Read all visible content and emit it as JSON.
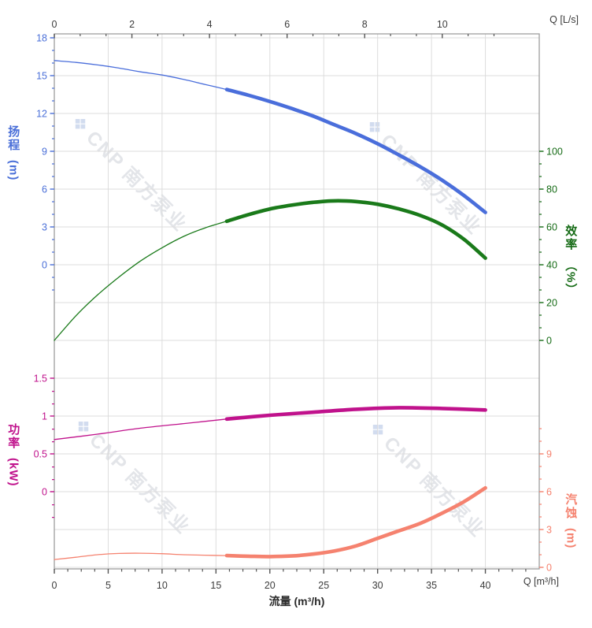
{
  "frame": {
    "background": "#ffffff",
    "grid_color": "#dcdcdc",
    "frame_color": "#9f9f9f",
    "tick_color_xy": "#555555"
  },
  "watermark": {
    "logo": "❖",
    "text": "CNP 南方泵业"
  },
  "chart_data": {
    "type": "line",
    "title": "",
    "x_bottom": {
      "title": "流量 (m³/h)",
      "corner_label": "Q [m³/h]",
      "range": [
        0,
        45
      ],
      "major_ticks": [
        0,
        5,
        10,
        15,
        20,
        25,
        30,
        35,
        40
      ],
      "minor_step": 1.25,
      "label_color": "#3c3c3c"
    },
    "x_top": {
      "corner_label": "Q [L/s]",
      "range": [
        0,
        12.5
      ],
      "major_ticks": [
        0,
        2,
        4,
        6,
        8,
        10
      ],
      "minor_step": 0.66667,
      "minor_max": 12.45,
      "label_color": "#3c3c3c"
    },
    "y_head": {
      "title": "扬程",
      "unit": "(m)",
      "range": [
        0,
        18
      ],
      "major_ticks": [
        18,
        15,
        12,
        9,
        6,
        3,
        0
      ],
      "major_labels": [
        "18",
        "15",
        "12",
        "9",
        "6",
        "3",
        "0"
      ],
      "minor_step": 1,
      "minor_min": -2,
      "minor_max": 18,
      "color": "#4a6fd8"
    },
    "y_eff": {
      "title": "效率",
      "unit": "（%）",
      "range": [
        0,
        100
      ],
      "major_ticks": [
        100,
        80,
        60,
        40,
        20,
        0
      ],
      "major_labels": [
        "100",
        "80",
        "60",
        "40",
        "20",
        "0"
      ],
      "minor_step": 6.66667,
      "minor_min": 0,
      "minor_max": 100,
      "color": "#166b16"
    },
    "y_power": {
      "title": "功率",
      "unit": "(kW)",
      "range": [
        0,
        1.5
      ],
      "major_ticks": [
        1.5,
        1,
        0.5,
        0
      ],
      "major_labels": [
        "1.5",
        "1",
        "0.5",
        "0"
      ],
      "minor_step": 0.166667,
      "minor_min": -0.34,
      "minor_max": 1.5,
      "color": "#c0128c"
    },
    "y_npsh": {
      "title": "汽蚀",
      "unit": "(m)",
      "range": [
        0,
        9
      ],
      "major_ticks": [
        9,
        6,
        3,
        0
      ],
      "major_labels": [
        "9",
        "6",
        "3",
        "0"
      ],
      "minor_step": 1,
      "minor_min": 0,
      "minor_max": 11,
      "color": "#f5826f"
    },
    "series": [
      {
        "name": "head",
        "axis": "head",
        "color": "#4a6edb",
        "thick_from": 16,
        "points": [
          [
            0,
            16.2
          ],
          [
            2,
            16.05
          ],
          [
            4,
            15.85
          ],
          [
            6,
            15.6
          ],
          [
            8,
            15.3
          ],
          [
            10,
            15.05
          ],
          [
            12,
            14.7
          ],
          [
            14,
            14.3
          ],
          [
            16,
            13.9
          ],
          [
            18,
            13.45
          ],
          [
            20,
            12.95
          ],
          [
            22,
            12.4
          ],
          [
            24,
            11.8
          ],
          [
            26,
            11.1
          ],
          [
            28,
            10.4
          ],
          [
            30,
            9.6
          ],
          [
            32,
            8.7
          ],
          [
            34,
            7.75
          ],
          [
            36,
            6.7
          ],
          [
            38,
            5.5
          ],
          [
            40,
            4.15
          ]
        ]
      },
      {
        "name": "efficiency",
        "axis": "eff",
        "color": "#1a7a1a",
        "thick_from": 16,
        "points": [
          [
            0,
            0
          ],
          [
            2,
            13
          ],
          [
            4,
            24
          ],
          [
            6,
            33.5
          ],
          [
            8,
            42
          ],
          [
            10,
            49
          ],
          [
            12,
            55
          ],
          [
            14,
            59.5
          ],
          [
            16,
            63
          ],
          [
            18,
            66.5
          ],
          [
            20,
            69.5
          ],
          [
            22,
            71.5
          ],
          [
            24,
            73
          ],
          [
            26,
            73.8
          ],
          [
            28,
            73.4
          ],
          [
            30,
            72
          ],
          [
            32,
            69.5
          ],
          [
            34,
            66
          ],
          [
            36,
            61
          ],
          [
            38,
            53.5
          ],
          [
            40,
            43.5
          ]
        ]
      },
      {
        "name": "power",
        "axis": "power",
        "color": "#c0128c",
        "thick_from": 16,
        "points": [
          [
            0,
            0.69
          ],
          [
            4,
            0.76
          ],
          [
            8,
            0.84
          ],
          [
            12,
            0.9
          ],
          [
            16,
            0.96
          ],
          [
            20,
            1.01
          ],
          [
            24,
            1.05
          ],
          [
            28,
            1.09
          ],
          [
            32,
            1.11
          ],
          [
            36,
            1.1
          ],
          [
            40,
            1.08
          ]
        ]
      },
      {
        "name": "npsh",
        "axis": "npsh",
        "color": "#f5826f",
        "thick_from": 16,
        "points": [
          [
            0,
            0.62
          ],
          [
            2,
            0.8
          ],
          [
            4,
            1.0
          ],
          [
            6,
            1.1
          ],
          [
            8,
            1.12
          ],
          [
            10,
            1.08
          ],
          [
            12,
            1.0
          ],
          [
            14,
            0.96
          ],
          [
            16,
            0.93
          ],
          [
            18,
            0.88
          ],
          [
            20,
            0.85
          ],
          [
            22,
            0.9
          ],
          [
            24,
            1.05
          ],
          [
            26,
            1.3
          ],
          [
            28,
            1.7
          ],
          [
            30,
            2.3
          ],
          [
            32,
            2.9
          ],
          [
            34,
            3.5
          ],
          [
            36,
            4.3
          ],
          [
            38,
            5.2
          ],
          [
            40,
            6.3
          ]
        ]
      }
    ]
  }
}
